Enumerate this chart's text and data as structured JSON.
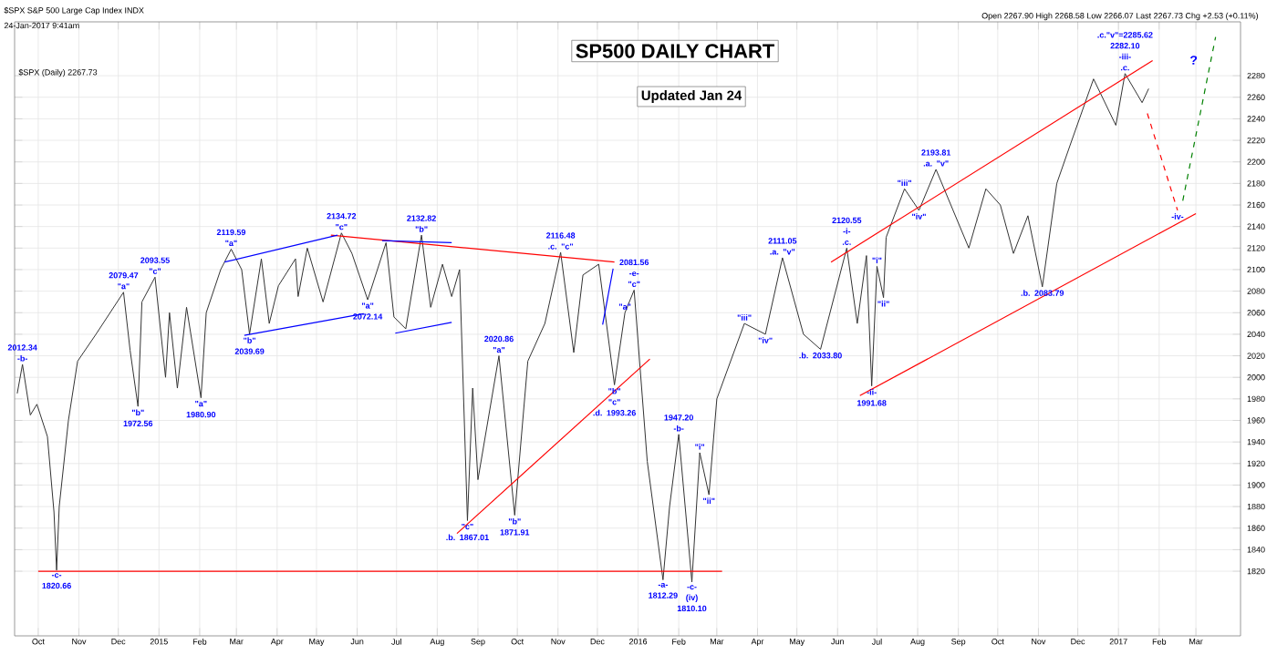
{
  "chart_data": {
    "type": "line",
    "title": "SP500 DAILY CHART",
    "subtitle": "Updated Jan 24",
    "grid": true,
    "xlim": [
      "2014-09-13",
      "2017-04-04"
    ],
    "ylim": [
      1760,
      2330
    ],
    "xticks": [
      {
        "value": "2014-10-01",
        "label": "Oct"
      },
      {
        "value": "2014-11-01",
        "label": "Nov"
      },
      {
        "value": "2014-12-01",
        "label": "Dec"
      },
      {
        "value": "2015-01-01",
        "label": "2015"
      },
      {
        "value": "2015-02-01",
        "label": "Feb"
      },
      {
        "value": "2015-03-01",
        "label": "Mar"
      },
      {
        "value": "2015-04-01",
        "label": "Apr"
      },
      {
        "value": "2015-05-01",
        "label": "May"
      },
      {
        "value": "2015-06-01",
        "label": "Jun"
      },
      {
        "value": "2015-07-01",
        "label": "Jul"
      },
      {
        "value": "2015-08-01",
        "label": "Aug"
      },
      {
        "value": "2015-09-01",
        "label": "Sep"
      },
      {
        "value": "2015-10-01",
        "label": "Oct"
      },
      {
        "value": "2015-11-01",
        "label": "Nov"
      },
      {
        "value": "2015-12-01",
        "label": "Dec"
      },
      {
        "value": "2016-01-01",
        "label": "2016"
      },
      {
        "value": "2016-02-01",
        "label": "Feb"
      },
      {
        "value": "2016-03-01",
        "label": "Mar"
      },
      {
        "value": "2016-04-01",
        "label": "Apr"
      },
      {
        "value": "2016-05-01",
        "label": "May"
      },
      {
        "value": "2016-06-01",
        "label": "Jun"
      },
      {
        "value": "2016-07-01",
        "label": "Jul"
      },
      {
        "value": "2016-08-01",
        "label": "Aug"
      },
      {
        "value": "2016-09-01",
        "label": "Sep"
      },
      {
        "value": "2016-10-01",
        "label": "Oct"
      },
      {
        "value": "2016-11-01",
        "label": "Nov"
      },
      {
        "value": "2016-12-01",
        "label": "Dec"
      },
      {
        "value": "2017-01-01",
        "label": "2017"
      },
      {
        "value": "2017-02-01",
        "label": "Feb"
      },
      {
        "value": "2017-03-01",
        "label": "Mar"
      }
    ],
    "yticks": [
      1820,
      1840,
      1860,
      1880,
      1900,
      1920,
      1940,
      1960,
      1980,
      2000,
      2020,
      2040,
      2060,
      2080,
      2100,
      2120,
      2140,
      2160,
      2180,
      2200,
      2220,
      2240,
      2260,
      2280
    ],
    "x": [
      "2014-09-15",
      "2014-09-19",
      "2014-09-25",
      "2014-09-30",
      "2014-10-08",
      "2014-10-13",
      "2014-10-15",
      "2014-10-17",
      "2014-10-24",
      "2014-10-31",
      "2014-11-14",
      "2014-12-05",
      "2014-12-10",
      "2014-12-16",
      "2014-12-19",
      "2014-12-29",
      "2015-01-06",
      "2015-01-09",
      "2015-01-15",
      "2015-01-22",
      "2015-02-02",
      "2015-02-06",
      "2015-02-17",
      "2015-02-25",
      "2015-03-05",
      "2015-03-11",
      "2015-03-20",
      "2015-03-26",
      "2015-04-02",
      "2015-04-15",
      "2015-04-17",
      "2015-04-24",
      "2015-05-06",
      "2015-05-20",
      "2015-05-28",
      "2015-06-09",
      "2015-06-23",
      "2015-06-29",
      "2015-07-08",
      "2015-07-20",
      "2015-07-27",
      "2015-08-05",
      "2015-08-12",
      "2015-08-18",
      "2015-08-24",
      "2015-08-28",
      "2015-09-01",
      "2015-09-17",
      "2015-09-29",
      "2015-10-09",
      "2015-10-22",
      "2015-11-03",
      "2015-11-13",
      "2015-11-20",
      "2015-12-02",
      "2015-12-14",
      "2015-12-22",
      "2015-12-29",
      "2016-01-08",
      "2016-01-20",
      "2016-01-25",
      "2016-02-01",
      "2016-02-11",
      "2016-02-17",
      "2016-02-24",
      "2016-03-01",
      "2016-03-22",
      "2016-04-07",
      "2016-04-20",
      "2016-05-06",
      "2016-05-19",
      "2016-06-08",
      "2016-06-16",
      "2016-06-23",
      "2016-06-27",
      "2016-07-01",
      "2016-07-06",
      "2016-07-08",
      "2016-07-22",
      "2016-08-02",
      "2016-08-15",
      "2016-09-09",
      "2016-09-22",
      "2016-10-03",
      "2016-10-13",
      "2016-10-24",
      "2016-11-04",
      "2016-11-15",
      "2016-11-25",
      "2016-12-13",
      "2016-12-30",
      "2017-01-06",
      "2017-01-19",
      "2017-01-24"
    ],
    "series": [
      {
        "color": "#333333",
        "values": [
          1985,
          2012,
          1965,
          1975,
          1945,
          1875,
          1821,
          1880,
          1960,
          2015,
          2040,
          2079,
          2025,
          1973,
          2070,
          2093,
          2000,
          2060,
          1990,
          2065,
          1981,
          2060,
          2100,
          2119,
          2100,
          2040,
          2110,
          2050,
          2085,
          2110,
          2075,
          2120,
          2070,
          2134,
          2115,
          2072,
          2125,
          2056,
          2045,
          2132,
          2065,
          2105,
          2075,
          2100,
          1867,
          1990,
          1905,
          2020,
          1872,
          2015,
          2050,
          2116,
          2023,
          2095,
          2105,
          1993,
          2060,
          2081,
          1922,
          1812,
          1880,
          1947,
          1810,
          1930,
          1891,
          1980,
          2050,
          2040,
          2111,
          2040,
          2026,
          2120,
          2050,
          2113,
          1992,
          2103,
          2074,
          2130,
          2175,
          2155,
          2193,
          2120,
          2175,
          2160,
          2115,
          2150,
          2084,
          2180,
          2215,
          2277,
          2234,
          2282,
          2255,
          2268
        ]
      },
      {
        "color": "#ff0000",
        "x": [
          "2014-10-01",
          "2016-03-05"
        ],
        "values": [
          1820,
          1820
        ]
      },
      {
        "color": "#ff0000",
        "x": [
          "2015-05-12",
          "2015-12-14"
        ],
        "values": [
          2132,
          2107
        ]
      },
      {
        "color": "#ff0000",
        "x": [
          "2015-08-16",
          "2016-01-10"
        ],
        "values": [
          1855,
          2017
        ]
      },
      {
        "color": "#ff0000",
        "x": [
          "2016-05-27",
          "2017-01-27"
        ],
        "values": [
          2107,
          2294
        ]
      },
      {
        "color": "#ff0000",
        "x": [
          "2016-06-18",
          "2017-03-01"
        ],
        "values": [
          1983,
          2152
        ]
      },
      {
        "color": "#0000ff",
        "x": [
          "2015-02-20",
          "2015-05-17"
        ],
        "values": [
          2107,
          2132
        ]
      },
      {
        "color": "#0000ff",
        "x": [
          "2015-03-07",
          "2015-06-06"
        ],
        "values": [
          2039,
          2059
        ]
      },
      {
        "color": "#0000ff",
        "x": [
          "2015-06-20",
          "2015-08-12"
        ],
        "values": [
          2127,
          2125
        ]
      },
      {
        "color": "#0000ff",
        "x": [
          "2015-06-30",
          "2015-08-12"
        ],
        "values": [
          2041,
          2051
        ]
      },
      {
        "color": "#0000ff",
        "x": [
          "2015-12-05",
          "2015-12-13"
        ],
        "values": [
          2049,
          2101
        ]
      },
      {
        "color": "#ff0000",
        "line_style": "dashed",
        "x": [
          "2017-01-23",
          "2017-02-15"
        ],
        "values": [
          2245,
          2155
        ]
      },
      {
        "color": "#008000",
        "line_style": "dashed",
        "x": [
          "2017-02-19",
          "2017-03-16"
        ],
        "values": [
          2164,
          2316
        ]
      }
    ],
    "annotations": [
      "$SPX S&P 500 Large Cap Index INDX",
      "24-Jan-2017 9:41am",
      "Open 2267.90  High 2268.58  Low 2266.07  Last 2267.73  Chg +2.53 (+0.11%)",
      "$SPX (Daily) 2267.73",
      "?",
      {
        "text": "2012.34 -b-",
        "x": "2014-09-19",
        "y": 2012
      },
      {
        "text": "-c- 1820.66",
        "x": "2014-10-15",
        "y": 1821
      },
      {
        "text": "2079.47 \"a\"",
        "x": "2014-12-05",
        "y": 2079
      },
      {
        "text": "2093.55 \"c\"",
        "x": "2014-12-29",
        "y": 2093
      },
      {
        "text": "\"b\" 1972.56",
        "x": "2014-12-16",
        "y": 1973
      },
      {
        "text": "\"a\" 1980.90",
        "x": "2015-02-02",
        "y": 1981
      },
      {
        "text": "2119.59 \"a\"",
        "x": "2015-02-25",
        "y": 2119
      },
      {
        "text": "\"b\" 2039.69",
        "x": "2015-03-11",
        "y": 2040
      },
      {
        "text": "2134.72 \"c\"",
        "x": "2015-05-20",
        "y": 2134
      },
      {
        "text": "\"a\" 2072.14",
        "x": "2015-06-09",
        "y": 2072
      },
      {
        "text": "2132.82 \"b\"",
        "x": "2015-07-20",
        "y": 2132
      },
      {
        "text": "2020.86 \"a\"",
        "x": "2015-09-17",
        "y": 2020
      },
      {
        "text": "\"c\" .b. 1867.01",
        "x": "2015-08-24",
        "y": 1867
      },
      {
        "text": "\"b\" 1871.91",
        "x": "2015-09-29",
        "y": 1872
      },
      {
        "text": "2116.48 .c. \"c\"",
        "x": "2015-11-03",
        "y": 2116
      },
      {
        "text": "2081.56 -e- \"c\"",
        "x": "2015-12-29",
        "y": 2081
      },
      {
        "text": "\"a\"",
        "x": "2015-12-22",
        "y": 2060
      },
      {
        "text": "\"b\" \"c\" .d. 1993.26",
        "x": "2015-12-14",
        "y": 1993
      },
      {
        "text": "1947.20 -b-",
        "x": "2016-02-01",
        "y": 1947
      },
      {
        "text": "-a- 1812.29",
        "x": "2016-01-20",
        "y": 1812
      },
      {
        "text": "-c- (iv) 1810.10",
        "x": "2016-02-11",
        "y": 1810
      },
      {
        "text": "\"i\"",
        "x": "2016-02-17",
        "y": 1930
      },
      {
        "text": "\"ii\"",
        "x": "2016-02-24",
        "y": 1891
      },
      {
        "text": "\"iii\"",
        "x": "2016-03-22",
        "y": 2050
      },
      {
        "text": "\"iv\"",
        "x": "2016-04-07",
        "y": 2040
      },
      {
        "text": "2111.05 .a. \"v\"",
        "x": "2016-04-20",
        "y": 2111
      },
      {
        "text": ".b. 2033.80",
        "x": "2016-05-19",
        "y": 2026
      },
      {
        "text": "2120.55 -i- .c.",
        "x": "2016-06-08",
        "y": 2120
      },
      {
        "text": "\"i\"",
        "x": "2016-07-01",
        "y": 2103
      },
      {
        "text": "\"ii\"",
        "x": "2016-07-06",
        "y": 2074
      },
      {
        "text": "-ii- 1991.68",
        "x": "2016-06-27",
        "y": 1992
      },
      {
        "text": "\"iii\"",
        "x": "2016-07-22",
        "y": 2175
      },
      {
        "text": "\"iv\"",
        "x": "2016-08-02",
        "y": 2155
      },
      {
        "text": "2193.81 .a. \"v\"",
        "x": "2016-08-15",
        "y": 2193
      },
      {
        "text": ".b. 2083.79",
        "x": "2016-11-04",
        "y": 2084
      },
      {
        "text": ".c.\"v\"=2285.62 2282.10 -iii- .c.",
        "x": "2017-01-06",
        "y": 2282
      },
      {
        "text": "-iv-",
        "x": "2017-02-15",
        "y": 2155
      }
    ]
  }
}
